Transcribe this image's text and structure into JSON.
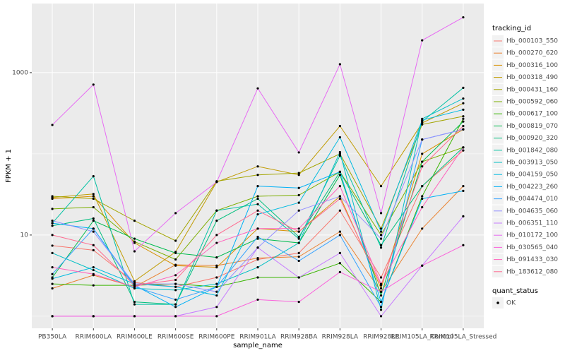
{
  "chart_data": {
    "type": "line",
    "x_label": "sample_name",
    "y_label": "FPKM + 1",
    "categories": [
      "PB350LA",
      "RRIM600LA",
      "RRIM600LE",
      "RRIM600SE",
      "RRIM600PE",
      "RRIM901LA",
      "RRIM928BA",
      "RRIM928LA",
      "RRIM928LE",
      "RRIM105LA_Control",
      "RRIM105LA_Stressed"
    ],
    "log_y": true,
    "ylim": [
      0.71,
      7100
    ],
    "yticks": [
      10,
      1000
    ],
    "minor_yticks": [
      1,
      100
    ],
    "grid": true,
    "legend_title": "tracking_id",
    "legend_position": "right",
    "legend2_title": "quant_status",
    "legend2_items": [
      "OK"
    ],
    "point_color": "#000000",
    "series": [
      {
        "name": "Hb_000103_550",
        "color": "#F8766D",
        "values": [
          7.4,
          6.5,
          2.6,
          2.3,
          3.0,
          5.0,
          6.0,
          20,
          3.0,
          40,
          110
        ]
      },
      {
        "name": "Hb_000270_620",
        "color": "#EA8331",
        "values": [
          2.2,
          3.2,
          2.3,
          4.3,
          4.2,
          5.2,
          5.4,
          11,
          2.0,
          12,
          40
        ]
      },
      {
        "name": "Hb_000316_100",
        "color": "#D89000",
        "values": [
          28,
          30,
          8.0,
          4.2,
          4.0,
          12,
          11,
          30,
          2.2,
          100,
          200
        ]
      },
      {
        "name": "Hb_000318_490",
        "color": "#C09B00",
        "values": [
          29,
          32,
          2.7,
          6.2,
          45,
          70,
          55,
          220,
          40,
          240,
          420
        ]
      },
      {
        "name": "Hb_000431_160",
        "color": "#A3A500",
        "values": [
          30,
          28,
          15,
          8.5,
          46,
          55,
          58,
          100,
          12,
          230,
          290
        ]
      },
      {
        "name": "Hb_000592_060",
        "color": "#7CAE00",
        "values": [
          21,
          22,
          8.3,
          5.0,
          20,
          30,
          31,
          60,
          10,
          80,
          120
        ]
      },
      {
        "name": "Hb_000617_100",
        "color": "#39B600",
        "values": [
          2.5,
          2.4,
          2.4,
          2.5,
          2.3,
          3.0,
          3.0,
          4.5,
          1.5,
          30,
          270
        ]
      },
      {
        "name": "Hb_000819_070",
        "color": "#00BB4E",
        "values": [
          3.0,
          15,
          9.0,
          6.0,
          5.3,
          9.0,
          8.0,
          55,
          1.8,
          80,
          250
        ]
      },
      {
        "name": "Hb_000920_320",
        "color": "#00BF7D",
        "values": [
          13,
          16,
          1.5,
          1.4,
          15,
          28,
          9.5,
          60,
          7.5,
          40,
          120
        ]
      },
      {
        "name": "Hb_001842_080",
        "color": "#00C1A3",
        "values": [
          14,
          53,
          1.4,
          1.4,
          20,
          24,
          9.0,
          95,
          7.0,
          250,
          650
        ]
      },
      {
        "name": "Hb_003913_050",
        "color": "#00BFC4",
        "values": [
          6.0,
          3.7,
          2.2,
          2.1,
          2.5,
          4.0,
          8.0,
          105,
          1.2,
          270,
          480
        ]
      },
      {
        "name": "Hb_004159_050",
        "color": "#00BAE0",
        "values": [
          2.9,
          4.0,
          2.5,
          2.3,
          1.8,
          18,
          25,
          160,
          11,
          260,
          350
        ]
      },
      {
        "name": "Hb_004223_260",
        "color": "#00B0F6",
        "values": [
          14,
          12,
          2.4,
          1.3,
          2.3,
          40,
          38,
          60,
          1.5,
          28,
          35
        ]
      },
      {
        "name": "Hb_004474_010",
        "color": "#35A2FF",
        "values": [
          3.3,
          12,
          2.3,
          1.6,
          2.3,
          9.5,
          4.8,
          10,
          1.3,
          150,
          200
        ]
      },
      {
        "name": "Hb_004635_060",
        "color": "#9590FF",
        "values": [
          15,
          11,
          2.5,
          2.5,
          2.0,
          7.0,
          20,
          30,
          9.0,
          150,
          200
        ]
      },
      {
        "name": "Hb_006351_110",
        "color": "#C77CFF",
        "values": [
          1.0,
          1.0,
          1.0,
          1.0,
          1.3,
          7.0,
          3.0,
          6.0,
          1.0,
          4.2,
          17
        ]
      },
      {
        "name": "Hb_010172_100",
        "color": "#E76BF3",
        "values": [
          227,
          713,
          6.3,
          18.6,
          45,
          640,
          104,
          1270,
          18.6,
          2500,
          4800
        ]
      },
      {
        "name": "Hb_030565_040",
        "color": "#FA62DB",
        "values": [
          1.0,
          1.0,
          1.0,
          1.0,
          1.0,
          1.6,
          1.5,
          3.5,
          2.0,
          4.2,
          7.5
        ]
      },
      {
        "name": "Hb_091433_030",
        "color": "#FF62BC",
        "values": [
          4.0,
          3.3,
          2.3,
          3.2,
          8.0,
          12,
          12,
          40,
          2.5,
          22,
          120
        ]
      },
      {
        "name": "Hb_183612_080",
        "color": "#FF6C91",
        "values": [
          10,
          7.5,
          2.4,
          2.8,
          10,
          20,
          11,
          28,
          2.4,
          70,
          220
        ]
      }
    ]
  }
}
